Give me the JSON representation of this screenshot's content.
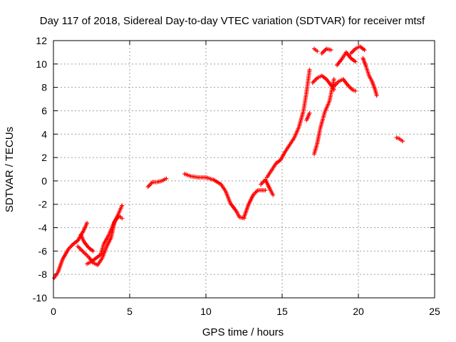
{
  "chart_data": {
    "type": "scatter",
    "title": "Day 117 of 2018, Sidereal Day-to-day VTEC variation (SDTVAR) for receiver mtsf",
    "xlabel": "GPS time / hours",
    "ylabel": "SDTVAR / TECUs",
    "xlim": [
      0,
      25
    ],
    "ylim": [
      -10,
      12
    ],
    "xticks": [
      "0",
      "5",
      "10",
      "15",
      "20",
      "25"
    ],
    "yticks": [
      "-10",
      "-8",
      "-6",
      "-4",
      "-2",
      "0",
      "2",
      "4",
      "6",
      "8",
      "10",
      "12"
    ],
    "grid": true,
    "marker": "plus",
    "color": "#ff0000",
    "series": [
      {
        "name": "arc1",
        "x": [
          0.05,
          0.3,
          0.6,
          1.0,
          1.3,
          1.6,
          2.0,
          2.2
        ],
        "y": [
          -8.3,
          -7.8,
          -6.7,
          -5.8,
          -5.4,
          -5.1,
          -4.2,
          -3.6
        ]
      },
      {
        "name": "arc2",
        "x": [
          1.6,
          1.9,
          2.3,
          2.6,
          2.9,
          3.2,
          3.5,
          3.8,
          4.0,
          4.3,
          4.5
        ],
        "y": [
          -5.6,
          -6.0,
          -6.5,
          -7.0,
          -7.2,
          -6.6,
          -5.6,
          -4.8,
          -3.5,
          -3.0,
          -3.2
        ]
      },
      {
        "name": "arc3",
        "x": [
          2.2,
          2.5,
          2.8,
          3.1,
          3.3,
          3.6,
          3.9,
          4.2,
          4.5
        ],
        "y": [
          -7.1,
          -6.9,
          -6.6,
          -6.3,
          -5.4,
          -4.7,
          -3.8,
          -3.0,
          -2.1
        ]
      },
      {
        "name": "arc4",
        "x": [
          1.8,
          2.0,
          2.3,
          2.6
        ],
        "y": [
          -4.6,
          -5.2,
          -5.7,
          -6.0
        ]
      },
      {
        "name": "arc5",
        "x": [
          6.2,
          6.5,
          6.8,
          7.1,
          7.4
        ],
        "y": [
          -0.5,
          -0.1,
          -0.1,
          0.0,
          0.2
        ]
      },
      {
        "name": "arc6",
        "x": [
          8.6,
          9.0,
          9.5,
          10.0,
          10.5,
          11.0,
          11.3,
          11.6,
          12.0,
          12.2,
          12.5
        ],
        "y": [
          0.6,
          0.4,
          0.3,
          0.3,
          0.1,
          -0.3,
          -0.9,
          -1.9,
          -2.6,
          -3.1,
          -3.2
        ]
      },
      {
        "name": "arc7",
        "x": [
          12.5,
          12.8,
          13.1,
          13.4,
          13.7,
          13.9
        ],
        "y": [
          -3.1,
          -2.0,
          -1.2,
          -0.8,
          -0.8,
          -0.8
        ]
      },
      {
        "name": "arc8",
        "x": [
          13.6,
          13.9,
          14.2,
          14.4
        ],
        "y": [
          -0.3,
          0.1,
          -0.7,
          -1.2
        ]
      },
      {
        "name": "arc9",
        "x": [
          14.0,
          14.3,
          14.6,
          14.9,
          15.2,
          15.5,
          15.8,
          16.1,
          16.4,
          16.6,
          16.8
        ],
        "y": [
          0.3,
          0.9,
          1.5,
          1.8,
          2.5,
          3.1,
          3.7,
          4.6,
          6.0,
          7.6,
          9.5
        ]
      },
      {
        "name": "arc10",
        "x": [
          16.6,
          16.8
        ],
        "y": [
          5.2,
          5.8
        ]
      },
      {
        "name": "arc11",
        "x": [
          17.1,
          17.3
        ],
        "y": [
          11.3,
          11.1
        ]
      },
      {
        "name": "arc12",
        "x": [
          17.1,
          17.3,
          17.5,
          17.8,
          18.1,
          18.4
        ],
        "y": [
          2.3,
          3.2,
          4.5,
          5.9,
          6.8,
          8.7
        ]
      },
      {
        "name": "arc13",
        "x": [
          17.0,
          17.3,
          17.6,
          17.9,
          18.2,
          18.4
        ],
        "y": [
          8.4,
          8.8,
          9.0,
          8.7,
          8.2,
          7.8
        ]
      },
      {
        "name": "arc14",
        "x": [
          17.6,
          17.9,
          18.2
        ],
        "y": [
          10.9,
          11.3,
          11.2
        ]
      },
      {
        "name": "arc15",
        "x": [
          18.4,
          18.7,
          19.0,
          19.3,
          19.6,
          19.8
        ],
        "y": [
          8.1,
          8.5,
          8.7,
          8.2,
          7.8,
          7.7
        ]
      },
      {
        "name": "arc16",
        "x": [
          18.6,
          18.9,
          19.2,
          19.5,
          19.8
        ],
        "y": [
          9.9,
          10.4,
          11.0,
          10.5,
          10.2
        ]
      },
      {
        "name": "arc17",
        "x": [
          19.5,
          19.8,
          20.1,
          20.4
        ],
        "y": [
          10.9,
          11.3,
          11.5,
          11.2
        ]
      },
      {
        "name": "arc18",
        "x": [
          20.3,
          20.5,
          20.7,
          20.9,
          21.1,
          21.2
        ],
        "y": [
          10.5,
          9.8,
          9.0,
          8.5,
          7.8,
          7.3
        ]
      },
      {
        "name": "arc19",
        "x": [
          22.5,
          22.7,
          22.9
        ],
        "y": [
          3.7,
          3.6,
          3.4
        ]
      }
    ]
  }
}
